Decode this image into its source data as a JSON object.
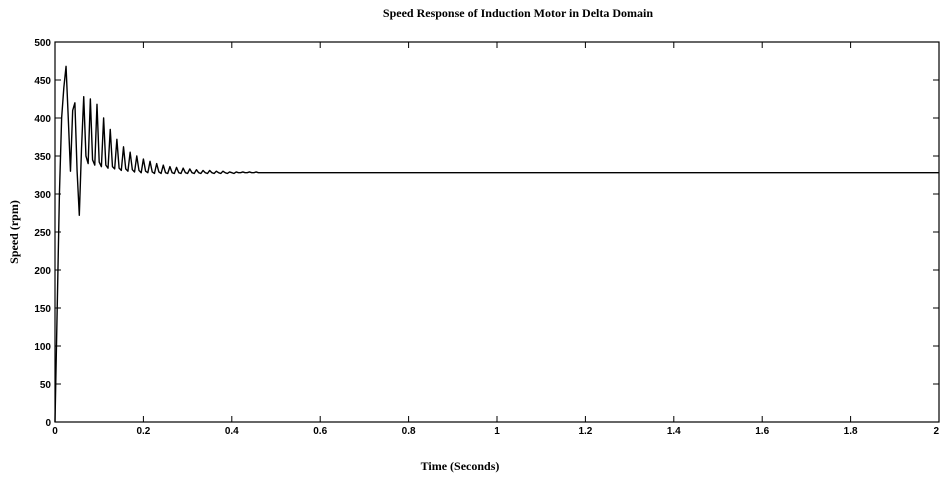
{
  "chart_data": {
    "type": "line",
    "title": "Speed Response of Induction Motor in Delta Domain",
    "xlabel": "Time (Seconds)",
    "ylabel": "Speed (rpm)",
    "xlim": [
      0,
      2
    ],
    "ylim": [
      0,
      500
    ],
    "x_ticks": [
      0,
      0.2,
      0.4,
      0.6,
      0.8,
      1,
      1.2,
      1.4,
      1.6,
      1.8,
      2
    ],
    "x_tick_labels": [
      "0",
      "0.2",
      "0.4",
      "0.6",
      "0.8",
      "1",
      "1.2",
      "1.4",
      "1.6",
      "1.8",
      "2"
    ],
    "y_ticks": [
      0,
      50,
      100,
      150,
      200,
      250,
      300,
      350,
      400,
      450,
      500
    ],
    "y_tick_labels": [
      "0",
      "50",
      "100",
      "150",
      "200",
      "250",
      "300",
      "350",
      "400",
      "450",
      "500"
    ],
    "grid": false,
    "series": [
      {
        "color": "#000000",
        "x": [
          0,
          0.005,
          0.01,
          0.015,
          0.02,
          0.025,
          0.03,
          0.035,
          0.04,
          0.045,
          0.05,
          0.055,
          0.06,
          0.065,
          0.07,
          0.075,
          0.08,
          0.085,
          0.09,
          0.095,
          0.1,
          0.105,
          0.11,
          0.115,
          0.12,
          0.125,
          0.13,
          0.135,
          0.14,
          0.145,
          0.15,
          0.155,
          0.16,
          0.165,
          0.17,
          0.175,
          0.18,
          0.185,
          0.19,
          0.195,
          0.2,
          0.205,
          0.21,
          0.215,
          0.22,
          0.225,
          0.23,
          0.235,
          0.24,
          0.245,
          0.25,
          0.255,
          0.26,
          0.265,
          0.27,
          0.275,
          0.28,
          0.285,
          0.29,
          0.295,
          0.3,
          0.305,
          0.31,
          0.315,
          0.32,
          0.325,
          0.33,
          0.335,
          0.34,
          0.345,
          0.35,
          0.355,
          0.36,
          0.365,
          0.37,
          0.375,
          0.38,
          0.385,
          0.39,
          0.395,
          0.4,
          0.405,
          0.41,
          0.415,
          0.42,
          0.425,
          0.43,
          0.435,
          0.44,
          0.445,
          0.45,
          0.455,
          0.46,
          0.465,
          0.47,
          0.475,
          0.48,
          0.485,
          0.49,
          0.495,
          0.5,
          0.51,
          0.52,
          0.53,
          0.54,
          0.55,
          0.56,
          0.57,
          0.58,
          0.59,
          0.6,
          0.8,
          1.0,
          1.2,
          1.4,
          1.6,
          1.8,
          2.0
        ],
        "y": [
          0,
          150,
          300,
          400,
          440,
          468,
          400,
          330,
          410,
          420,
          330,
          272,
          360,
          428,
          350,
          340,
          425,
          345,
          338,
          418,
          342,
          336,
          400,
          338,
          334,
          385,
          336,
          333,
          372,
          334,
          331,
          362,
          333,
          330,
          355,
          332,
          329,
          350,
          331,
          328,
          346,
          330,
          328,
          343,
          329,
          327,
          340,
          329,
          327,
          338,
          328,
          327,
          336,
          328,
          327,
          335,
          328,
          327,
          334,
          328,
          327,
          333,
          328,
          327,
          332,
          328,
          327,
          331,
          328,
          327,
          331,
          328,
          327,
          330,
          328,
          327,
          330,
          328,
          327,
          329,
          328,
          327,
          329,
          328,
          328,
          329,
          328,
          328,
          329,
          328,
          328,
          329,
          328,
          328,
          328,
          328,
          328,
          328,
          328,
          328,
          328,
          328,
          328,
          328,
          328,
          328,
          328,
          328,
          328,
          328,
          328,
          328,
          328,
          328,
          328,
          328,
          328,
          328
        ]
      }
    ]
  }
}
